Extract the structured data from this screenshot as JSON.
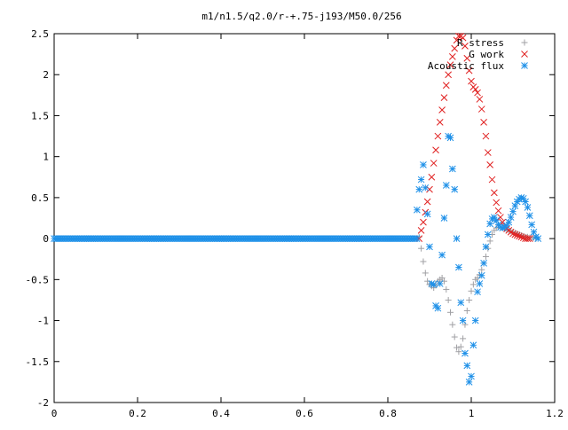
{
  "chart_data": {
    "type": "scatter",
    "title": "m1/n1.5/q2.0/r-+.75-j193/M50.0/256",
    "xlim": [
      0,
      1.2
    ],
    "ylim": [
      -2,
      2.5
    ],
    "x_ticks": [
      0,
      0.2,
      0.4,
      0.6,
      0.8,
      1,
      1.2
    ],
    "x_tick_labels": [
      "0",
      "0.2",
      "0.4",
      "0.6",
      "0.8",
      "1",
      "1.2"
    ],
    "y_ticks": [
      -2,
      -1.5,
      -1,
      -0.5,
      0,
      0.5,
      1,
      1.5,
      2,
      2.5
    ],
    "y_tick_labels": [
      "-2",
      "-1.5",
      "-1",
      "-0.5",
      "0",
      "0.5",
      "1",
      "1.5",
      "2",
      "2.5"
    ],
    "grid": false,
    "legend_position": "top-right",
    "series": [
      {
        "name": "R stress",
        "marker": "+",
        "color": "#a0a0a4",
        "points": [
          [
            0.875,
            0.02
          ],
          [
            0.88,
            -0.12
          ],
          [
            0.885,
            -0.28
          ],
          [
            0.89,
            -0.42
          ],
          [
            0.895,
            -0.52
          ],
          [
            0.9,
            -0.56
          ],
          [
            0.905,
            -0.58
          ],
          [
            0.91,
            -0.6
          ],
          [
            0.915,
            -0.57
          ],
          [
            0.92,
            -0.52
          ],
          [
            0.925,
            -0.5
          ],
          [
            0.93,
            -0.48
          ],
          [
            0.935,
            -0.52
          ],
          [
            0.94,
            -0.62
          ],
          [
            0.945,
            -0.75
          ],
          [
            0.95,
            -0.9
          ],
          [
            0.955,
            -1.05
          ],
          [
            0.96,
            -1.2
          ],
          [
            0.965,
            -1.33
          ],
          [
            0.97,
            -1.38
          ],
          [
            0.975,
            -1.32
          ],
          [
            0.98,
            -1.22
          ],
          [
            0.985,
            -1.05
          ],
          [
            0.99,
            -0.88
          ],
          [
            0.995,
            -0.75
          ],
          [
            1.0,
            -0.64
          ],
          [
            1.005,
            -0.56
          ],
          [
            1.01,
            -0.5
          ],
          [
            1.015,
            -0.48
          ],
          [
            1.02,
            -0.44
          ],
          [
            1.025,
            -0.38
          ],
          [
            1.03,
            -0.3
          ],
          [
            1.035,
            -0.22
          ],
          [
            1.04,
            -0.12
          ],
          [
            1.045,
            -0.03
          ],
          [
            1.05,
            0.05
          ],
          [
            1.055,
            0.1
          ],
          [
            1.06,
            0.13
          ],
          [
            1.065,
            0.14
          ],
          [
            1.07,
            0.14
          ],
          [
            1.075,
            0.13
          ],
          [
            1.08,
            0.12
          ],
          [
            1.085,
            0.11
          ],
          [
            1.09,
            0.1
          ],
          [
            1.095,
            0.09
          ],
          [
            1.1,
            0.08
          ],
          [
            1.105,
            0.07
          ],
          [
            1.11,
            0.06
          ],
          [
            1.115,
            0.05
          ],
          [
            1.12,
            0.04
          ],
          [
            1.125,
            0.03
          ],
          [
            1.13,
            0.02
          ],
          [
            1.135,
            0.02
          ],
          [
            1.14,
            0.01
          ],
          [
            1.145,
            0.01
          ],
          [
            1.15,
            0.01
          ],
          [
            1.155,
            0.0
          ]
        ]
      },
      {
        "name": "G work",
        "marker": "x",
        "color": "#e02020",
        "points": [
          [
            0.875,
            0.0
          ],
          [
            0.88,
            0.1
          ],
          [
            0.885,
            0.2
          ],
          [
            0.89,
            0.32
          ],
          [
            0.895,
            0.45
          ],
          [
            0.9,
            0.6
          ],
          [
            0.905,
            0.75
          ],
          [
            0.91,
            0.92
          ],
          [
            0.915,
            1.08
          ],
          [
            0.92,
            1.25
          ],
          [
            0.925,
            1.42
          ],
          [
            0.93,
            1.57
          ],
          [
            0.935,
            1.72
          ],
          [
            0.94,
            1.87
          ],
          [
            0.945,
            2.0
          ],
          [
            0.95,
            2.12
          ],
          [
            0.955,
            2.22
          ],
          [
            0.96,
            2.32
          ],
          [
            0.965,
            2.42
          ],
          [
            0.97,
            2.47
          ],
          [
            0.975,
            2.47
          ],
          [
            0.98,
            2.45
          ],
          [
            0.985,
            2.35
          ],
          [
            0.99,
            2.2
          ],
          [
            0.995,
            2.05
          ],
          [
            1.0,
            1.92
          ],
          [
            1.005,
            1.85
          ],
          [
            1.01,
            1.82
          ],
          [
            1.015,
            1.78
          ],
          [
            1.02,
            1.7
          ],
          [
            1.025,
            1.58
          ],
          [
            1.03,
            1.42
          ],
          [
            1.035,
            1.25
          ],
          [
            1.04,
            1.05
          ],
          [
            1.045,
            0.9
          ],
          [
            1.05,
            0.72
          ],
          [
            1.055,
            0.56
          ],
          [
            1.06,
            0.44
          ],
          [
            1.065,
            0.34
          ],
          [
            1.07,
            0.26
          ],
          [
            1.075,
            0.2
          ],
          [
            1.08,
            0.15
          ],
          [
            1.085,
            0.12
          ],
          [
            1.09,
            0.1
          ],
          [
            1.095,
            0.08
          ],
          [
            1.1,
            0.06
          ],
          [
            1.105,
            0.05
          ],
          [
            1.11,
            0.04
          ],
          [
            1.115,
            0.03
          ],
          [
            1.12,
            0.02
          ],
          [
            1.125,
            0.01
          ],
          [
            1.13,
            0.0
          ],
          [
            1.135,
            0.0
          ],
          [
            1.14,
            0.0
          ]
        ]
      },
      {
        "name": "Acoustic flux",
        "marker": "*",
        "color": "#1e90e8",
        "points": [
          [
            0.87,
            0.35
          ],
          [
            0.875,
            0.6
          ],
          [
            0.88,
            0.72
          ],
          [
            0.885,
            0.9
          ],
          [
            0.89,
            0.62
          ],
          [
            0.895,
            0.3
          ],
          [
            0.9,
            -0.1
          ],
          [
            0.905,
            -0.55
          ],
          [
            0.91,
            -0.56
          ],
          [
            0.915,
            -0.82
          ],
          [
            0.92,
            -0.85
          ],
          [
            0.925,
            -0.55
          ],
          [
            0.93,
            -0.2
          ],
          [
            0.935,
            0.25
          ],
          [
            0.94,
            0.65
          ],
          [
            0.945,
            1.25
          ],
          [
            0.95,
            1.23
          ],
          [
            0.955,
            0.85
          ],
          [
            0.96,
            0.6
          ],
          [
            0.965,
            0.0
          ],
          [
            0.97,
            -0.35
          ],
          [
            0.975,
            -0.78
          ],
          [
            0.98,
            -1.0
          ],
          [
            0.985,
            -1.4
          ],
          [
            0.99,
            -1.55
          ],
          [
            0.995,
            -1.75
          ],
          [
            1.0,
            -1.68
          ],
          [
            1.005,
            -1.3
          ],
          [
            1.01,
            -1.0
          ],
          [
            1.015,
            -0.65
          ],
          [
            1.02,
            -0.55
          ],
          [
            1.025,
            -0.45
          ],
          [
            1.03,
            -0.3
          ],
          [
            1.035,
            -0.1
          ],
          [
            1.04,
            0.05
          ],
          [
            1.045,
            0.18
          ],
          [
            1.05,
            0.24
          ],
          [
            1.055,
            0.26
          ],
          [
            1.06,
            0.22
          ],
          [
            1.065,
            0.17
          ],
          [
            1.07,
            0.14
          ],
          [
            1.075,
            0.13
          ],
          [
            1.08,
            0.14
          ],
          [
            1.085,
            0.16
          ],
          [
            1.09,
            0.2
          ],
          [
            1.095,
            0.26
          ],
          [
            1.1,
            0.33
          ],
          [
            1.105,
            0.4
          ],
          [
            1.11,
            0.45
          ],
          [
            1.115,
            0.48
          ],
          [
            1.12,
            0.5
          ],
          [
            1.125,
            0.49
          ],
          [
            1.13,
            0.45
          ],
          [
            1.135,
            0.38
          ],
          [
            1.14,
            0.28
          ],
          [
            1.145,
            0.17
          ],
          [
            1.15,
            0.08
          ],
          [
            1.155,
            0.02
          ],
          [
            1.16,
            0.0
          ]
        ]
      }
    ]
  }
}
